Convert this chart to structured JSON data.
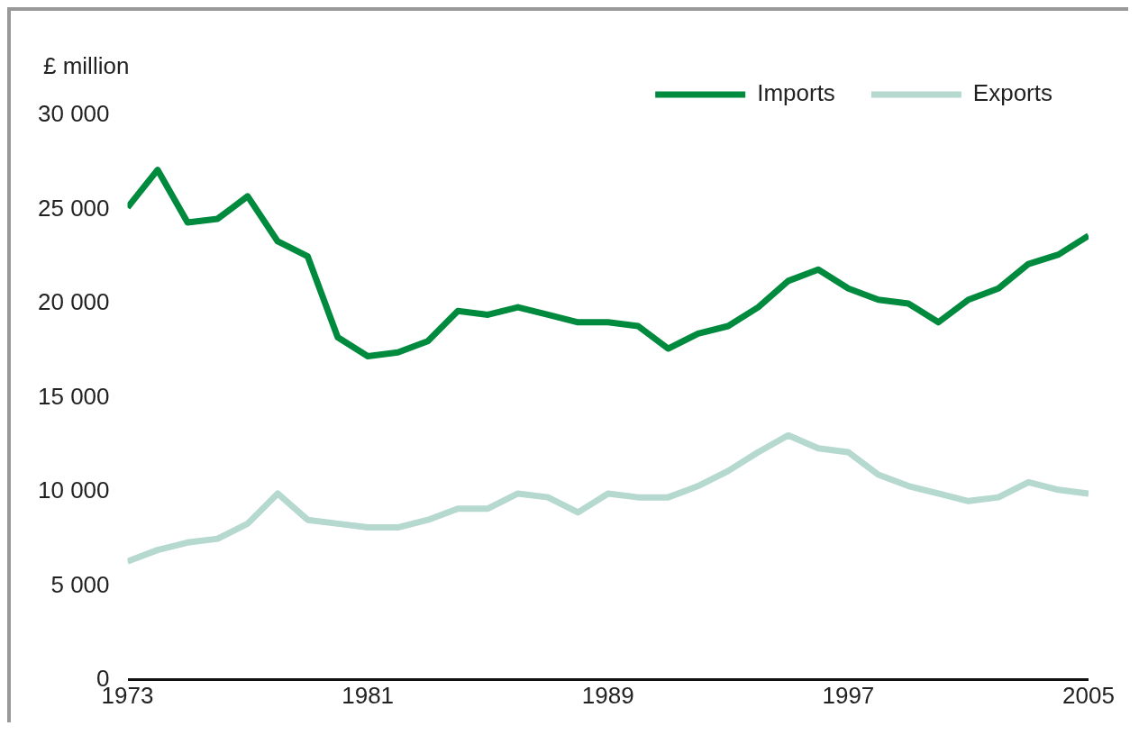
{
  "chart_data": {
    "type": "line",
    "ylabel": "£ million",
    "x": [
      1973,
      1974,
      1975,
      1976,
      1977,
      1978,
      1979,
      1980,
      1981,
      1982,
      1983,
      1984,
      1985,
      1986,
      1987,
      1988,
      1989,
      1990,
      1991,
      1992,
      1993,
      1994,
      1995,
      1996,
      1997,
      1998,
      1999,
      2000,
      2001,
      2002,
      2003,
      2004,
      2005
    ],
    "series": [
      {
        "name": "Imports",
        "color": "#008a3e",
        "values": [
          25100,
          27100,
          24300,
          24500,
          25700,
          23300,
          22500,
          18200,
          17200,
          17400,
          18000,
          19600,
          19400,
          19800,
          19400,
          19000,
          19000,
          18800,
          17600,
          18400,
          18800,
          19800,
          21200,
          21800,
          20800,
          20200,
          20000,
          19000,
          20200,
          20800,
          22100,
          22600,
          23600
        ]
      },
      {
        "name": "Exports",
        "color": "#b5d8cf",
        "values": [
          6300,
          6900,
          7300,
          7500,
          8300,
          9900,
          8500,
          8300,
          8100,
          8100,
          8500,
          9100,
          9100,
          9900,
          9700,
          8900,
          9900,
          9700,
          9700,
          10300,
          11100,
          12100,
          13000,
          12300,
          12100,
          10900,
          10300,
          9900,
          9500,
          9700,
          10500,
          10100,
          9900
        ]
      }
    ],
    "xlim": [
      1973,
      2005
    ],
    "xticks": [
      1973,
      1981,
      1989,
      1997,
      2005
    ],
    "ylim": [
      0,
      30000
    ],
    "yticks": [
      {
        "value": 0,
        "label": "0"
      },
      {
        "value": 5000,
        "label": "5 000"
      },
      {
        "value": 10000,
        "label": "10 000"
      },
      {
        "value": 15000,
        "label": "15 000"
      },
      {
        "value": 20000,
        "label": "20 000"
      },
      {
        "value": 25000,
        "label": "25 000"
      },
      {
        "value": 30000,
        "label": "30 000"
      }
    ],
    "grid": false,
    "legend": "top right",
    "marker": "none",
    "line_style": "solid"
  }
}
